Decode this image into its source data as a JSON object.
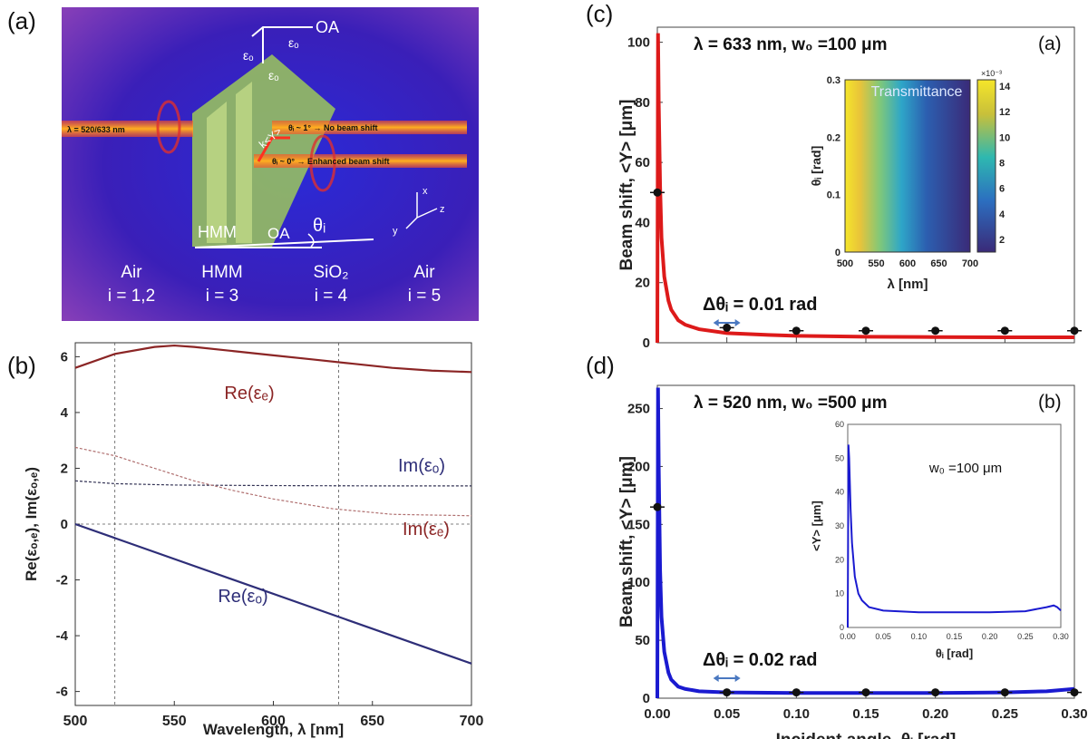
{
  "panel_labels": {
    "a": "(a)",
    "b": "(b)",
    "c": "(c)",
    "d": "(d)"
  },
  "schematic": {
    "beam_label": "λ = 520/633 nm",
    "no_shift_label": "θᵢ ~ 1° → No beam shift",
    "enhanced_label": "θᵢ ~ 0° → Enhanced beam shift",
    "ky_label": "k<Y>",
    "oa_top": "OA",
    "eps_top": "εₒ",
    "eps_mid": "εₒ",
    "eps_left": "εₒ",
    "hmm_label": "HMM",
    "oa_bottom": "OA",
    "theta_label": "θᵢ",
    "axis_x": "x",
    "axis_y": "y",
    "axis_z": "z",
    "regions": [
      {
        "name": "Air",
        "index": "i = 1,2"
      },
      {
        "name": "HMM",
        "index": "i = 3"
      },
      {
        "name": "SiO₂",
        "index": "i = 4"
      },
      {
        "name": "Air",
        "index": "i = 5"
      }
    ]
  },
  "chart_data": [
    {
      "id": "b",
      "type": "line",
      "xlabel": "Wavelength, λ [nm]",
      "ylabel": "Re(εₒ,ₑ), Im(εₒ,ₑ)",
      "xlim": [
        500,
        700
      ],
      "ylim": [
        -6.5,
        6.5
      ],
      "xticks": [
        "500",
        "550",
        "600",
        "650",
        "700"
      ],
      "yticks": [
        "6",
        "4",
        "2",
        "0",
        "-2",
        "-4",
        "-6"
      ],
      "vlines": [
        520,
        633
      ],
      "series": [
        {
          "name": "Re(εₑ)",
          "color": "#8b2525",
          "style": "solid",
          "x": [
            500,
            520,
            540,
            550,
            560,
            580,
            600,
            620,
            640,
            660,
            680,
            700
          ],
          "y": [
            5.6,
            6.1,
            6.35,
            6.4,
            6.35,
            6.2,
            6.05,
            5.9,
            5.75,
            5.6,
            5.5,
            5.45
          ]
        },
        {
          "name": "Im(εₒ)",
          "color": "#333355",
          "style": "dashed",
          "x": [
            500,
            520,
            550,
            600,
            650,
            700
          ],
          "y": [
            1.55,
            1.45,
            1.4,
            1.38,
            1.37,
            1.37
          ]
        },
        {
          "name": "Im(εₑ)",
          "color": "#b07070",
          "style": "dashed",
          "x": [
            500,
            520,
            540,
            560,
            580,
            600,
            630,
            660,
            700
          ],
          "y": [
            2.75,
            2.45,
            2.0,
            1.55,
            1.2,
            0.9,
            0.55,
            0.35,
            0.3
          ]
        },
        {
          "name": "Re(εₒ)",
          "color": "#2e2e78",
          "style": "solid",
          "x": [
            500,
            700
          ],
          "y": [
            0.0,
            -5.0
          ]
        }
      ],
      "annotations": [
        "Re(εₑ)",
        "Im(εₒ)",
        "Im(εₑ)",
        "Re(εₒ)"
      ]
    },
    {
      "id": "c",
      "type": "line",
      "title": "λ = 633 nm, w₀ =100 μm",
      "tag": "(a)",
      "xlabel": "",
      "ylabel": "Beam shift, <Y> [μm]",
      "xlim": [
        0.0,
        0.3
      ],
      "ylim": [
        0,
        105
      ],
      "yticks": [
        "0",
        "20",
        "40",
        "60",
        "80",
        "100"
      ],
      "color": "#dd1a1a",
      "curve": {
        "x": [
          0.0005,
          0.001,
          0.002,
          0.003,
          0.005,
          0.008,
          0.01,
          0.015,
          0.02,
          0.03,
          0.05,
          0.08,
          0.1,
          0.15,
          0.2,
          0.25,
          0.3
        ],
        "y": [
          103,
          80,
          52,
          35,
          22,
          14,
          11,
          7.5,
          6,
          4.5,
          3.2,
          2.6,
          2.3,
          2.0,
          1.9,
          1.8,
          1.8
        ]
      },
      "points": {
        "x": [
          0.0,
          0.05,
          0.1,
          0.15,
          0.2,
          0.25,
          0.3
        ],
        "y": [
          50,
          5,
          4,
          4,
          4,
          4,
          4
        ]
      },
      "delta_label": "Δθᵢ = 0.01 rad",
      "inset": {
        "type": "heatmap",
        "title": "Transmittance",
        "xlabel": "λ [nm]",
        "ylabel": "θᵢ [rad]",
        "xticks": [
          "500",
          "550",
          "600",
          "650",
          "700"
        ],
        "yticks": [
          "0",
          "0.1",
          "0.2",
          "0.3"
        ],
        "colorbar_ticks": [
          "14",
          "12",
          "10",
          "8",
          "6",
          "4",
          "2"
        ],
        "colorbar_exponent": "×10⁻³"
      }
    },
    {
      "id": "d",
      "type": "line",
      "title": "λ = 520 nm, w₀ =500 μm",
      "tag": "(b)",
      "xlabel": "Incident angle, θᵢ [rad]",
      "ylabel": "Beam shift, <Y> [μm]",
      "xlim": [
        0.0,
        0.3
      ],
      "ylim": [
        0,
        270
      ],
      "xticks": [
        "0.00",
        "0.05",
        "0.10",
        "0.15",
        "0.20",
        "0.25",
        "0.30"
      ],
      "yticks": [
        "0",
        "50",
        "100",
        "150",
        "200",
        "250"
      ],
      "color": "#1a1ad0",
      "curve": {
        "x": [
          0.0005,
          0.001,
          0.002,
          0.003,
          0.005,
          0.008,
          0.01,
          0.015,
          0.02,
          0.03,
          0.05,
          0.1,
          0.15,
          0.2,
          0.25,
          0.28,
          0.3
        ],
        "y": [
          268,
          200,
          110,
          70,
          40,
          22,
          16,
          10,
          8,
          6,
          5,
          4.5,
          4.5,
          4.5,
          5,
          6,
          8
        ]
      },
      "points": {
        "x": [
          0.0,
          0.05,
          0.1,
          0.15,
          0.2,
          0.25,
          0.3
        ],
        "y": [
          165,
          5,
          5,
          5,
          5,
          5,
          5
        ]
      },
      "delta_label": "Δθᵢ = 0.02 rad",
      "inset": {
        "type": "line",
        "label": "w₀ =100 μm",
        "xlabel": "θᵢ [rad]",
        "ylabel": "<Y> [μm]",
        "xlim": [
          0.0,
          0.3
        ],
        "ylim": [
          0,
          60
        ],
        "xticks": [
          "0.00",
          "0.05",
          "0.10",
          "0.15",
          "0.20",
          "0.25",
          "0.30"
        ],
        "yticks": [
          "0",
          "10",
          "20",
          "30",
          "40",
          "50",
          "60"
        ],
        "x": [
          0.001,
          0.002,
          0.004,
          0.006,
          0.01,
          0.015,
          0.02,
          0.03,
          0.05,
          0.1,
          0.15,
          0.2,
          0.25,
          0.28,
          0.29,
          0.295,
          0.3
        ],
        "y": [
          54,
          50,
          35,
          25,
          15,
          10,
          8,
          6,
          5,
          4.5,
          4.5,
          4.5,
          4.8,
          6,
          6.5,
          6,
          5
        ]
      }
    }
  ]
}
